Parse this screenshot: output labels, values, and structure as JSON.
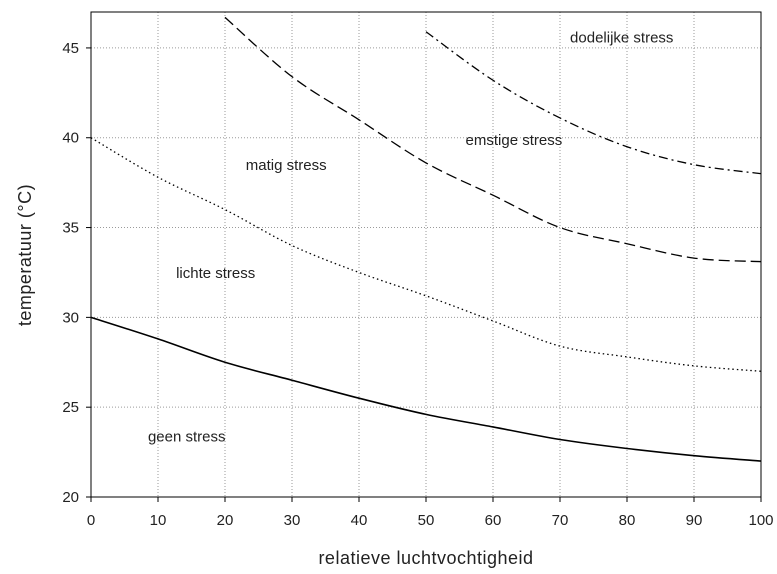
{
  "chart_data": {
    "type": "line",
    "title": "",
    "xlabel": "relatieve luchtvochtigheid",
    "ylabel": "temperatuur (°C)",
    "xlim": [
      0,
      100
    ],
    "ylim": [
      20,
      47
    ],
    "x_ticks": [
      0,
      10,
      20,
      30,
      40,
      50,
      60,
      70,
      80,
      90,
      100
    ],
    "y_ticks": [
      20,
      25,
      30,
      35,
      40,
      45
    ],
    "grid": true,
    "legend": "none",
    "series": [
      {
        "style": "solid",
        "x": [
          0,
          10,
          20,
          30,
          40,
          50,
          60,
          70,
          80,
          90,
          100
        ],
        "y": [
          30.0,
          28.8,
          27.5,
          26.5,
          25.5,
          24.6,
          23.9,
          23.2,
          22.7,
          22.3,
          22.0
        ]
      },
      {
        "style": "dotted",
        "x": [
          0,
          10,
          20,
          30,
          40,
          50,
          60,
          70,
          80,
          90,
          100
        ],
        "y": [
          40.0,
          37.8,
          36.0,
          34.0,
          32.5,
          31.2,
          29.8,
          28.4,
          27.8,
          27.3,
          27.0
        ]
      },
      {
        "style": "dashed",
        "x": [
          20,
          30,
          40,
          50,
          60,
          70,
          80,
          90,
          100
        ],
        "y": [
          46.7,
          43.4,
          41.0,
          38.6,
          36.8,
          35.0,
          34.1,
          33.3,
          33.1
        ]
      },
      {
        "style": "dashdot",
        "x": [
          50,
          60,
          70,
          80,
          90,
          100
        ],
        "y": [
          45.9,
          43.2,
          41.1,
          39.5,
          38.5,
          38.0
        ]
      }
    ],
    "annotations": [
      {
        "text": "geen stress",
        "x": 8.5,
        "y": 23.1
      },
      {
        "text": "lichte stress",
        "x": 12.7,
        "y": 32.2
      },
      {
        "text": "matig stress",
        "x": 23.1,
        "y": 38.2
      },
      {
        "text": "emstige stress",
        "x": 55.9,
        "y": 39.6
      },
      {
        "text": "dodelijke stress",
        "x": 71.5,
        "y": 45.3
      }
    ]
  }
}
